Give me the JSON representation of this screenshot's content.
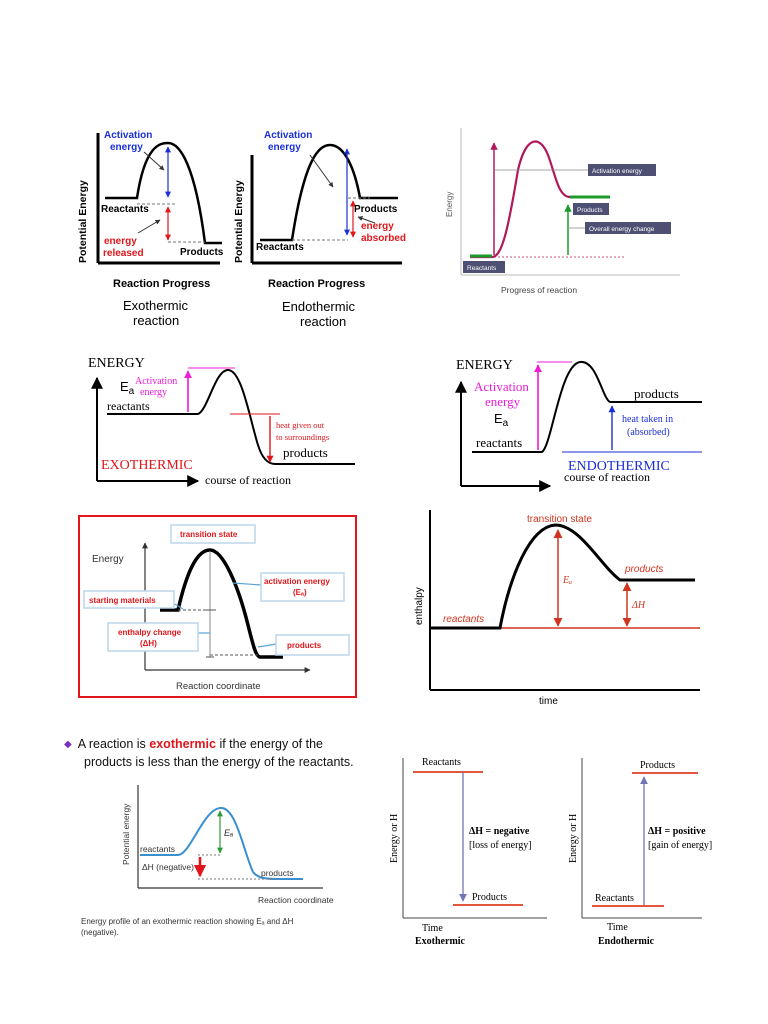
{
  "d1": {
    "activation": [
      "Activation",
      "energy"
    ],
    "reactants": "Reactants",
    "products": "Products",
    "released": [
      "energy",
      "released"
    ],
    "yaxis": "Potential Energy",
    "xaxis": "Reaction Progress",
    "caption": [
      "Exothermic",
      "reaction"
    ],
    "colors": {
      "blue": "#1a2fd6",
      "red": "#e0161b"
    }
  },
  "d2": {
    "activation": [
      "Activation",
      "energy"
    ],
    "reactants": "Reactants",
    "products": "Products",
    "absorbed": [
      "energy",
      "absorbed"
    ],
    "yaxis": "Potential Energy",
    "xaxis": "Reaction Progress",
    "caption": [
      "Endothermic",
      "reaction"
    ]
  },
  "d3": {
    "yaxis": "Energy",
    "xaxis": "Progress of reaction",
    "activation": "Activation energy",
    "products": "Products",
    "overall": "Overall energy change",
    "reactants": "Reactants",
    "colors": {
      "curve": "#b0185a",
      "green": "#1c9b2a",
      "box": "#4d4f73"
    }
  },
  "d4": {
    "energy": "ENERGY",
    "ea": "E",
    "ea_sub": "a",
    "activation": [
      "Activation",
      "energy"
    ],
    "reactants": "reactants",
    "heat": [
      "heat given out",
      "to surroundings"
    ],
    "products": "products",
    "type": "EXOTHERMIC",
    "xaxis": "course of reaction",
    "colors": {
      "magenta": "#ee1dd8",
      "red": "#e0161b"
    }
  },
  "d5": {
    "energy": "ENERGY",
    "activation": [
      "Activation",
      "energy"
    ],
    "ea": "E",
    "ea_sub": "a",
    "reactants": "reactants",
    "products": "products",
    "heat": [
      "heat taken in",
      "(absorbed)"
    ],
    "type": "ENDOTHERMIC",
    "xaxis": "course of reaction",
    "colors": {
      "blue": "#1a2fd6"
    }
  },
  "d6": {
    "transition": "transition state",
    "yaxis": "Energy",
    "activation": [
      "activation energy",
      "(Eₐ)"
    ],
    "starting": "starting materials",
    "enthalpy": [
      "enthalpy change",
      "(ΔH)"
    ],
    "products": "products",
    "xaxis": "Reaction coordinate",
    "colors": {
      "frame": "#e0161b",
      "label": "#e0161b"
    }
  },
  "d7": {
    "transition": "transition state",
    "products": "products",
    "ea": "Eₐ",
    "dh": "ΔH",
    "reactants": "reactants",
    "yaxis": "enthalpy",
    "xaxis": "time",
    "colors": {
      "label": "#d2351f"
    }
  },
  "d8": {
    "bullet_pre": "A reaction is ",
    "bullet_key": "exothermic",
    "bullet_post": " if the energy of the",
    "bullet_line2": "products is less than the energy of the reactants.",
    "yaxis": "Potential energy",
    "ea": "Eₐ",
    "reactants": "reactants",
    "dh": "ΔH (negative)",
    "products": "products",
    "xaxis": "Reaction coordinate",
    "caption": [
      "Energy profile of an exothermic reaction showing Eₐ and ΔH",
      "(negative)."
    ],
    "colors": {
      "bullet": "#7b2fbf",
      "key": "#e0161b"
    }
  },
  "d9": {
    "reactants": "Reactants",
    "dh": "ΔH = negative",
    "loss": "[loss of energy]",
    "products": "Products",
    "yaxis": "Energy or H",
    "xaxis": "Time",
    "type": "Exothermic",
    "colors": {
      "line": "#e3573f",
      "arrow": "#6f76b5"
    }
  },
  "d10": {
    "products": "Products",
    "dh": "ΔH = positive",
    "gain": "[gain of energy]",
    "reactants": "Reactants",
    "yaxis": "Energy or H",
    "xaxis": "Time",
    "type": "Endothermic"
  }
}
